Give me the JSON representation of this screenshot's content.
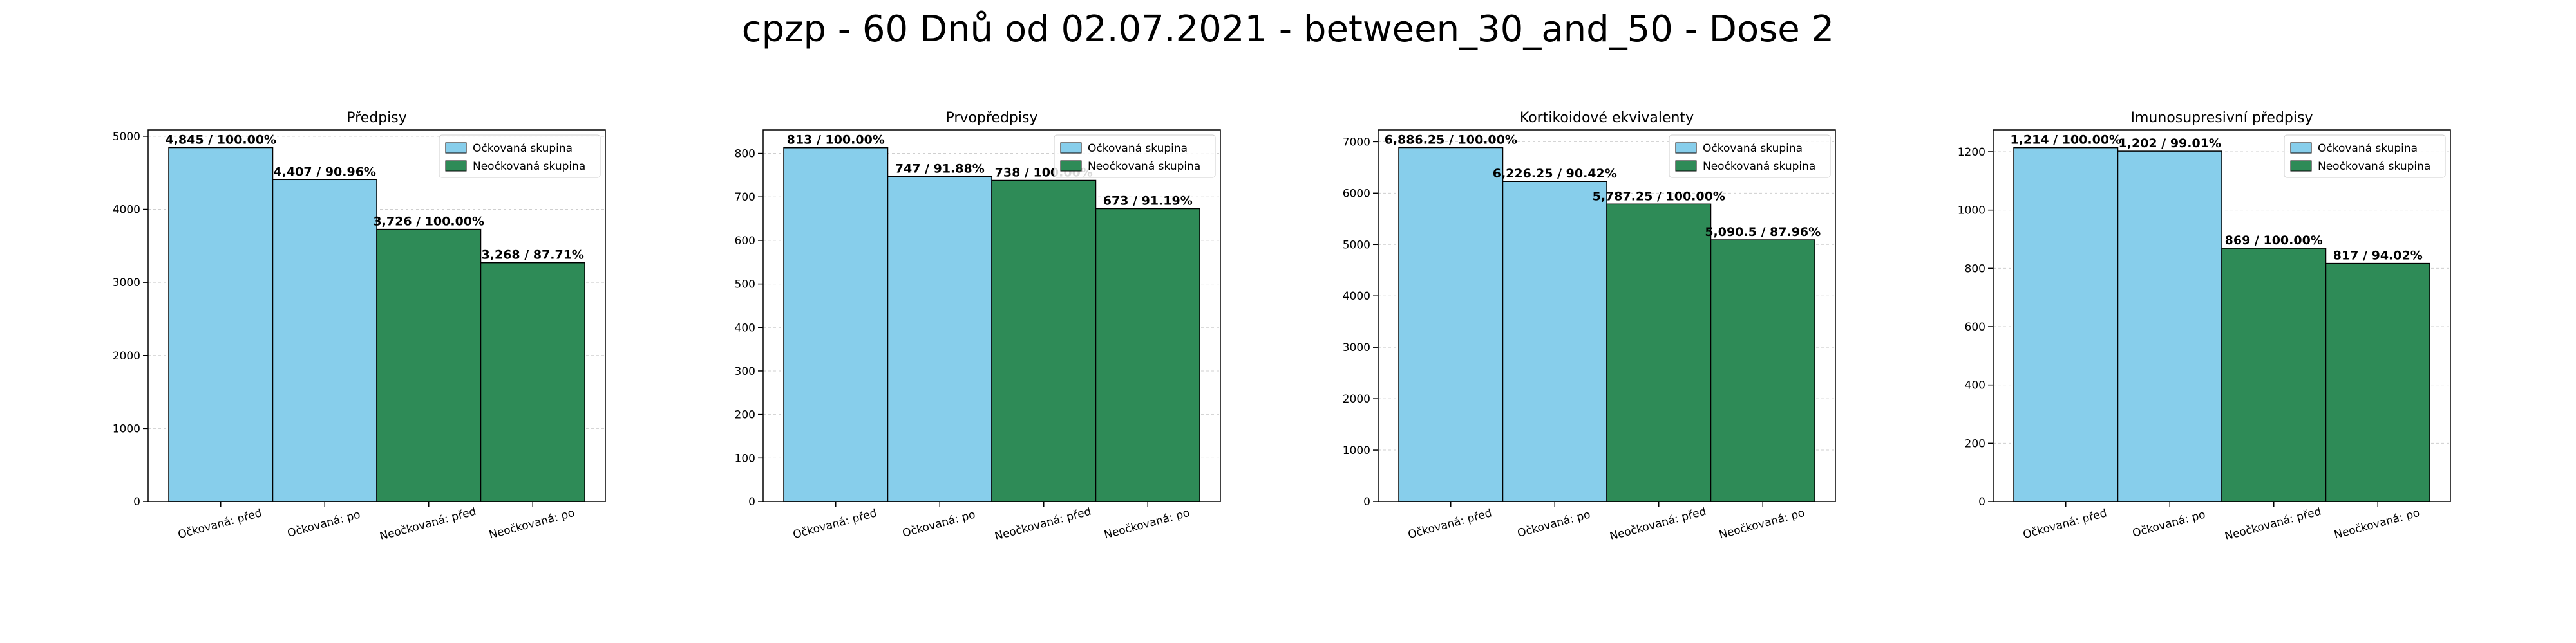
{
  "title": "cpzp - 60 Dnů od 02.07.2021 - between_30_and_50 - Dose 2",
  "legend": {
    "vaccinated": "Očkovaná skupina",
    "unvaccinated": "Neočkovaná skupina"
  },
  "colors": {
    "vaccinated": "#87CEEB",
    "unvaccinated": "#2E8B57",
    "bar_edge": "#000000"
  },
  "chart_data": [
    {
      "type": "bar",
      "title": "Předpisy",
      "categories": [
        "Očkovaná: před",
        "Očkovaná: po",
        "Neočkovaná: před",
        "Neočkovaná: po"
      ],
      "values": [
        4845,
        4407,
        3726,
        3268
      ],
      "labels": [
        "4,845 / 100.00%",
        "4,407 / 90.96%",
        "3,726 / 100.00%",
        "3,268 / 87.71%"
      ],
      "groups": [
        "vaccinated",
        "vaccinated",
        "unvaccinated",
        "unvaccinated"
      ],
      "ylim": [
        0,
        5087
      ],
      "yticks": [
        0,
        1000,
        2000,
        3000,
        4000,
        5000
      ],
      "legend_position": "top-right",
      "grid": true
    },
    {
      "type": "bar",
      "title": "Prvopředpisy",
      "categories": [
        "Očkovaná: před",
        "Očkovaná: po",
        "Neočkovaná: před",
        "Neočkovaná: po"
      ],
      "values": [
        813,
        747,
        738,
        673
      ],
      "labels": [
        "813 / 100.00%",
        "747 / 91.88%",
        "738 / 100.00%",
        "673 / 91.19%"
      ],
      "groups": [
        "vaccinated",
        "vaccinated",
        "unvaccinated",
        "unvaccinated"
      ],
      "ylim": [
        0,
        854
      ],
      "yticks": [
        0,
        100,
        200,
        300,
        400,
        500,
        600,
        700,
        800
      ],
      "legend_position": "top-right",
      "grid": true
    },
    {
      "type": "bar",
      "title": "Kortikoidové ekvivalenty",
      "categories": [
        "Očkovaná: před",
        "Očkovaná: po",
        "Neočkovaná: před",
        "Neočkovaná: po"
      ],
      "values": [
        6886.25,
        6226.25,
        5787.25,
        5090.5
      ],
      "labels": [
        "6,886.25 / 100.00%",
        "6,226.25 / 90.42%",
        "5,787.25 / 100.00%",
        "5,090.5 / 87.96%"
      ],
      "groups": [
        "vaccinated",
        "vaccinated",
        "unvaccinated",
        "unvaccinated"
      ],
      "ylim": [
        0,
        7230
      ],
      "yticks": [
        0,
        1000,
        2000,
        3000,
        4000,
        5000,
        6000,
        7000
      ],
      "legend_position": "top-right",
      "grid": true
    },
    {
      "type": "bar",
      "title": "Imunosupresivní předpisy",
      "categories": [
        "Očkovaná: před",
        "Očkovaná: po",
        "Neočkovaná: před",
        "Neočkovaná: po"
      ],
      "values": [
        1214,
        1202,
        869,
        817
      ],
      "labels": [
        "1,214 / 100.00%",
        "1,202 / 99.01%",
        "869 / 100.00%",
        "817 / 94.02%"
      ],
      "groups": [
        "vaccinated",
        "vaccinated",
        "unvaccinated",
        "unvaccinated"
      ],
      "ylim": [
        0,
        1275
      ],
      "yticks": [
        0,
        200,
        400,
        600,
        800,
        1000,
        1200
      ],
      "legend_position": "top-right",
      "grid": true
    }
  ]
}
